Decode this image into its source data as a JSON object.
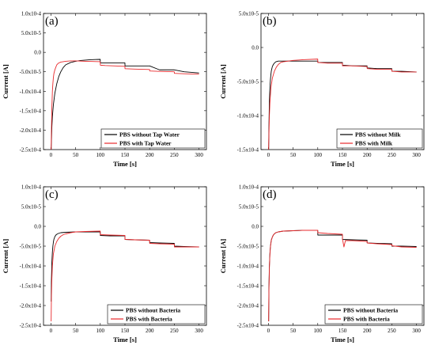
{
  "chart_data": [
    {
      "type": "line",
      "panel_label": "(a)",
      "xlabel": "Time [s]",
      "ylabel": "Current [A]",
      "xlim": [
        -15,
        315
      ],
      "ylim": [
        -0.00025,
        0.0001
      ],
      "xticks": [
        0,
        50,
        100,
        150,
        200,
        250,
        300
      ],
      "xtick_labels": [
        "0",
        "50",
        "100",
        "150",
        "200",
        "250",
        "300"
      ],
      "yticks": [
        0.0001,
        5e-05,
        0,
        -5e-05,
        -0.0001,
        -0.00015,
        -0.0002,
        -0.00025
      ],
      "ytick_labels": [
        "1.0x10-4",
        "5.0x10-5",
        "0.0",
        "-5.0x10-5",
        "-1.0x10-4",
        "-1.5x10-4",
        "-2.0x10-4",
        "-2.5x10-4"
      ],
      "legend_position": "bottom-right",
      "series": [
        {
          "name": "PBS without Tap Water",
          "color": "#000000",
          "x": [
            0.5,
            1,
            2,
            3,
            5,
            8,
            12,
            16,
            20,
            25,
            30,
            40,
            50,
            60,
            70,
            80,
            90,
            99.9,
            100.1,
            110,
            130,
            149.9,
            150.1,
            170,
            199.9,
            200.1,
            220,
            249.9,
            250.1,
            270,
            300
          ],
          "y": [
            -0.00025,
            -0.00023,
            -0.00019,
            -0.000165,
            -0.000135,
            -0.000105,
            -8e-05,
            -6.2e-05,
            -5e-05,
            -3.9e-05,
            -3.2e-05,
            -2.6e-05,
            -2.3e-05,
            -2.1e-05,
            -2e-05,
            -1.9e-05,
            -1.85e-05,
            -1.8e-05,
            -2.7e-05,
            -2.7e-05,
            -2.7e-05,
            -2.7e-05,
            -3.5e-05,
            -3.5e-05,
            -3.5e-05,
            -3.5e-05,
            -4.5e-05,
            -4.5e-05,
            -4.5e-05,
            -5e-05,
            -5.3e-05
          ]
        },
        {
          "name": "PBS with Tap Water",
          "color": "#e8292c",
          "x": [
            0.5,
            1,
            2,
            3,
            4,
            5,
            6,
            8,
            10,
            12,
            15,
            20,
            30,
            40,
            50,
            70,
            99.9,
            100.1,
            110,
            130,
            149.9,
            150.1,
            170,
            199.9,
            200.1,
            220,
            249.9,
            250.1,
            270,
            300
          ],
          "y": [
            -0.00025,
            -0.000205,
            -0.00014,
            -0.0001,
            -8e-05,
            -6.5e-05,
            -5.5e-05,
            -4.5e-05,
            -3.8e-05,
            -3.2e-05,
            -2.8e-05,
            -2.5e-05,
            -2.3e-05,
            -2.2e-05,
            -2.2e-05,
            -2.3e-05,
            -2.4e-05,
            -3.3e-05,
            -3.4e-05,
            -3.5e-05,
            -3.6e-05,
            -4.2e-05,
            -4.3e-05,
            -4.4e-05,
            -4.8e-05,
            -4.9e-05,
            -5e-05,
            -5.4e-05,
            -5.5e-05,
            -5.6e-05
          ]
        }
      ]
    },
    {
      "type": "line",
      "panel_label": "(b)",
      "xlabel": "Time [s]",
      "ylabel": "Current [A]",
      "xlim": [
        -15,
        315
      ],
      "ylim": [
        -0.00015,
        5e-05
      ],
      "xticks": [
        0,
        50,
        100,
        150,
        200,
        250,
        300
      ],
      "xtick_labels": [
        "0",
        "50",
        "100",
        "150",
        "200",
        "250",
        "300"
      ],
      "yticks": [
        5e-05,
        0,
        -5e-05,
        -0.0001,
        -0.00015
      ],
      "ytick_labels": [
        "5.0x10-5",
        "0.0",
        "-5.0x10-5",
        "-1.0x10-4",
        "-1.5x10-4"
      ],
      "legend_position": "bottom-right",
      "series": [
        {
          "name": "PBS without Milk",
          "color": "#000000",
          "x": [
            0.5,
            1,
            2,
            3,
            4,
            5,
            6,
            8,
            10,
            12,
            15,
            20,
            30,
            50,
            70,
            99.9,
            100.1,
            120,
            149.9,
            150.1,
            170,
            199.9,
            200.1,
            220,
            249.9,
            250.1,
            270,
            300
          ],
          "y": [
            -0.00015,
            -0.00012,
            -8e-05,
            -6e-05,
            -4.8e-05,
            -4e-05,
            -3.4e-05,
            -2.8e-05,
            -2.5e-05,
            -2.3e-05,
            -2.1e-05,
            -2e-05,
            -2e-05,
            -2e-05,
            -2e-05,
            -2e-05,
            -2.2e-05,
            -2.2e-05,
            -2.2e-05,
            -2.6e-05,
            -2.7e-05,
            -2.7e-05,
            -3e-05,
            -3.1e-05,
            -3.1e-05,
            -3.5e-05,
            -3.5e-05,
            -3.6e-05
          ]
        },
        {
          "name": "PBS with Milk",
          "color": "#e8292c",
          "x": [
            0.5,
            1,
            2,
            3,
            5,
            8,
            12,
            16,
            20,
            25,
            30,
            40,
            50,
            70,
            99.9,
            100.1,
            120,
            149.9,
            150.1,
            170,
            199.9,
            200.1,
            220,
            249.9,
            250.1,
            270,
            300
          ],
          "y": [
            -0.00015,
            -0.00013,
            -0.0001,
            -8.2e-05,
            -6e-05,
            -4.5e-05,
            -3.5e-05,
            -2.9e-05,
            -2.5e-05,
            -2.2e-05,
            -2.1e-05,
            -2e-05,
            -1.9e-05,
            -1.8e-05,
            -1.7e-05,
            -2.2e-05,
            -2.3e-05,
            -2.3e-05,
            -2.7e-05,
            -2.7e-05,
            -2.8e-05,
            -3.1e-05,
            -3.2e-05,
            -3.2e-05,
            -3.5e-05,
            -3.6e-05,
            -3.6e-05
          ]
        }
      ]
    },
    {
      "type": "line",
      "panel_label": "(c)",
      "xlabel": "Time [s]",
      "ylabel": "Current [A]",
      "xlim": [
        -15,
        315
      ],
      "ylim": [
        -0.00025,
        0.0001
      ],
      "xticks": [
        0,
        50,
        100,
        150,
        200,
        250,
        300
      ],
      "xtick_labels": [
        "0",
        "50",
        "100",
        "150",
        "200",
        "250",
        "300"
      ],
      "yticks": [
        0.0001,
        5e-05,
        0,
        -5e-05,
        -0.0001,
        -0.00015,
        -0.0002,
        -0.00025
      ],
      "ytick_labels": [
        "1.0x10-4",
        "5.0x10-5",
        "0.0",
        "-5.0x10-5",
        "-1.0x10-4",
        "-1.5x10-4",
        "-2.0x10-4",
        "-2.5x10-4"
      ],
      "legend_position": "bottom-right",
      "series": [
        {
          "name": "PBS without Bacteria",
          "color": "#000000",
          "x": [
            0.5,
            1,
            2,
            3,
            4,
            5,
            6,
            8,
            10,
            12,
            15,
            20,
            30,
            50,
            70,
            99.9,
            100.1,
            120,
            149.9,
            150.1,
            170,
            199.9,
            200.1,
            220,
            249.9,
            250.1,
            270,
            300
          ],
          "y": [
            -0.00019,
            -0.00014,
            -9e-05,
            -6.5e-05,
            -5e-05,
            -4e-05,
            -3.3e-05,
            -2.6e-05,
            -2.2e-05,
            -2e-05,
            -1.8e-05,
            -1.6e-05,
            -1.5e-05,
            -1.4e-05,
            -1.4e-05,
            -1.4e-05,
            -2.3e-05,
            -2.4e-05,
            -2.4e-05,
            -3.3e-05,
            -3.4e-05,
            -3.5e-05,
            -4.1e-05,
            -4.2e-05,
            -4.3e-05,
            -5e-05,
            -5.1e-05,
            -5.2e-05
          ]
        },
        {
          "name": "PBS with Bacteria",
          "color": "#e8292c",
          "x": [
            0.5,
            1,
            2,
            3,
            5,
            8,
            12,
            16,
            20,
            25,
            30,
            40,
            50,
            70,
            99.9,
            100.1,
            120,
            149.9,
            150.1,
            170,
            199.9,
            200.1,
            220,
            249.9,
            250.1,
            270,
            300
          ],
          "y": [
            -0.00024,
            -0.00018,
            -0.00013,
            -0.0001,
            -7e-05,
            -5e-05,
            -3.8e-05,
            -3e-05,
            -2.5e-05,
            -2.1e-05,
            -1.9e-05,
            -1.6e-05,
            -1.4e-05,
            -1.3e-05,
            -1.2e-05,
            -2.1e-05,
            -2.2e-05,
            -2.3e-05,
            -3.3e-05,
            -3.4e-05,
            -3.5e-05,
            -4.3e-05,
            -4.4e-05,
            -4.5e-05,
            -5.2e-05,
            -5.2e-05,
            -5.2e-05
          ]
        }
      ]
    },
    {
      "type": "line",
      "panel_label": "(d)",
      "xlabel": "Time [s]",
      "ylabel": "Current [A]",
      "xlim": [
        -15,
        315
      ],
      "ylim": [
        -0.00025,
        0.0001
      ],
      "xticks": [
        0,
        50,
        100,
        150,
        200,
        250,
        300
      ],
      "xtick_labels": [
        "0",
        "50",
        "100",
        "150",
        "200",
        "250",
        "300"
      ],
      "yticks": [
        0.0001,
        5e-05,
        0,
        -5e-05,
        -0.0001,
        -0.00015,
        -0.0002,
        -0.00025
      ],
      "ytick_labels": [
        "1.0x10-4",
        "5.0x10-5",
        "0.0",
        "-5.0x10-5",
        "-1.0x10-4",
        "-1.5x10-4",
        "-2.0x10-4",
        "-2.5x10-4"
      ],
      "legend_position": "bottom-right",
      "series": [
        {
          "name": "PBS without Bacteria",
          "color": "#000000",
          "x": [
            0.5,
            1,
            2,
            3,
            4,
            5,
            6,
            8,
            10,
            12,
            15,
            20,
            30,
            50,
            70,
            99.9,
            100.1,
            120,
            149.9,
            150.1,
            170,
            199.9,
            200.1,
            220,
            249.9,
            250.1,
            270,
            300
          ],
          "y": [
            -0.00024,
            -0.00016,
            -0.0001,
            -7e-05,
            -5.2e-05,
            -4.2e-05,
            -3.4e-05,
            -2.7e-05,
            -2.2e-05,
            -1.9e-05,
            -1.6e-05,
            -1.4e-05,
            -1.2e-05,
            -1.1e-05,
            -1e-05,
            -1e-05,
            -2.2e-05,
            -2.2e-05,
            -2.2e-05,
            -3.3e-05,
            -3.4e-05,
            -3.5e-05,
            -4.2e-05,
            -4.3e-05,
            -4.4e-05,
            -5e-05,
            -5e-05,
            -5.1e-05
          ]
        },
        {
          "name": "PBS with Bacteria",
          "color": "#e8292c",
          "x": [
            0.5,
            1,
            2,
            3,
            4,
            5,
            6,
            8,
            10,
            12,
            15,
            20,
            30,
            50,
            70,
            99.9,
            100.1,
            120,
            149.9,
            150.1,
            153,
            156,
            170,
            199.9,
            200.1,
            220,
            249.9,
            250.1,
            270,
            300
          ],
          "y": [
            -0.00024,
            -0.00017,
            -0.000105,
            -7.2e-05,
            -5.4e-05,
            -4.3e-05,
            -3.5e-05,
            -2.7e-05,
            -2.2e-05,
            -1.9e-05,
            -1.6e-05,
            -1.4e-05,
            -1.2e-05,
            -1.1e-05,
            -1e-05,
            -1e-05,
            -1.6e-05,
            -1.8e-05,
            -2e-05,
            -3.2e-05,
            -5.2e-05,
            -3.6e-05,
            -3.6e-05,
            -3.8e-05,
            -4.2e-05,
            -4.4e-05,
            -4.6e-05,
            -4.9e-05,
            -5.2e-05,
            -5.3e-05
          ]
        }
      ]
    }
  ]
}
